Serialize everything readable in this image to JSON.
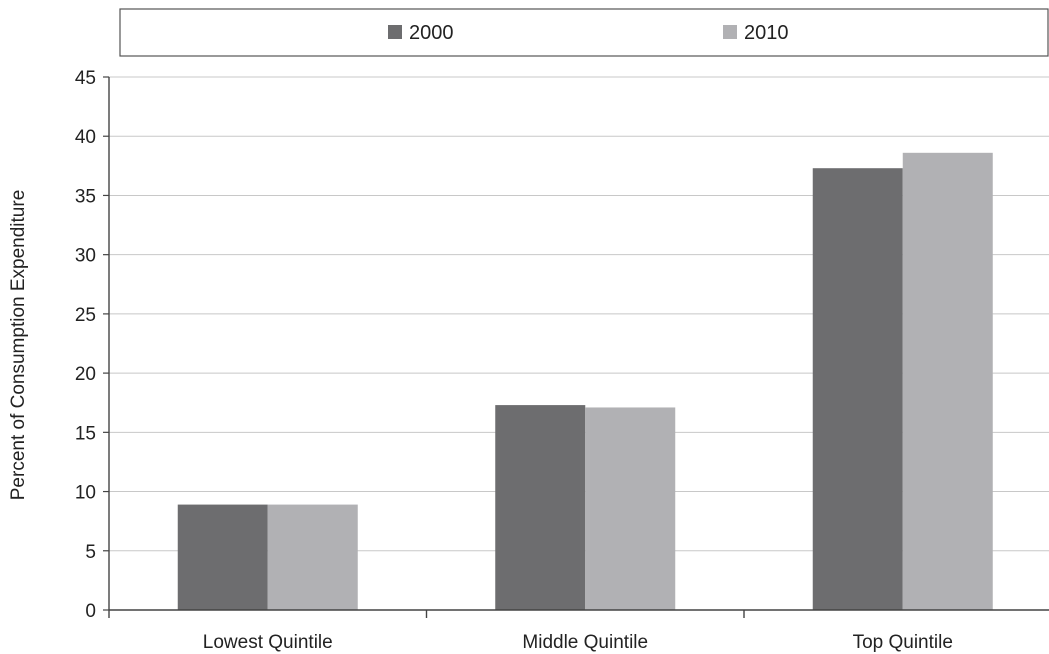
{
  "chart_data": {
    "type": "bar",
    "title": "",
    "xlabel": "",
    "ylabel": "Percent of Consumption Expenditure",
    "categories": [
      "Lowest Quintile",
      "Middle Quintile",
      "Top Quintile"
    ],
    "series": [
      {
        "name": "2000",
        "color": "#6d6d6f",
        "values": [
          8.9,
          17.3,
          37.3
        ]
      },
      {
        "name": "2010",
        "color": "#b1b1b4",
        "values": [
          8.9,
          17.1,
          38.6
        ]
      }
    ],
    "ylim": [
      0,
      45
    ],
    "yticks": [
      "0",
      "5",
      "10",
      "15",
      "20",
      "25",
      "30",
      "35",
      "40",
      "45"
    ],
    "grid": true,
    "legend": "top"
  }
}
